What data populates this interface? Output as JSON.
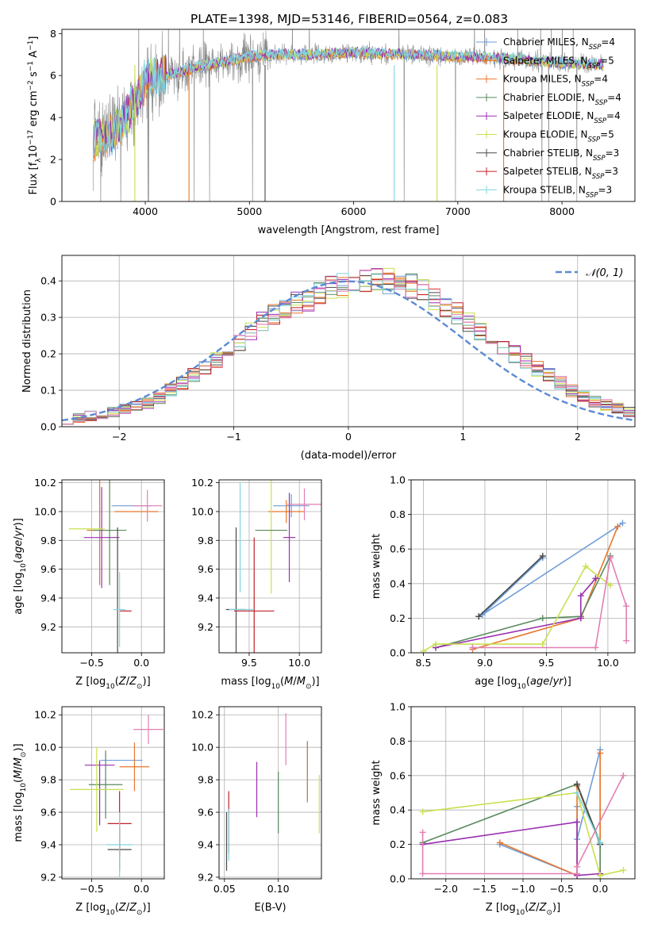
{
  "title": "PLATE=1398, MJD=53146, FIBERID=0564, z=0.083",
  "colors": {
    "chabrier_miles": "#6f9ed8",
    "salpeter_miles": "#e8762d",
    "kroupa_miles": "#e8762d",
    "chabrier_elodie": "#5a8a5e",
    "salpeter_elodie": "#9b2fb1",
    "kroupa_elodie": "#c9e04f",
    "chabrier_stelib": "#4a4a4a",
    "salpeter_stelib": "#c0202a",
    "kroupa_stelib": "#7fd6df",
    "normal": "#5b8ad4",
    "pink": "#e27fb3",
    "spectrum_gray": "#8a8a8a"
  },
  "chart_data": [
    {
      "id": "spectrum",
      "type": "line",
      "xlabel": "wavelength [Angstrom, rest frame]",
      "ylabel_parts": [
        "Flux [f",
        "λ",
        "10",
        "−17",
        " erg cm",
        "−2",
        " s",
        "−1",
        " A",
        "−1",
        "]"
      ],
      "xlim": [
        3200,
        8700
      ],
      "ylim": [
        0,
        8.2
      ],
      "xticks": [
        4000,
        5000,
        6000,
        7000,
        8000
      ],
      "yticks": [
        0,
        2,
        4,
        6,
        8
      ],
      "legend": [
        {
          "name": "Chabrier MILES, N",
          "sub": "SSP",
          "tail": "=4",
          "color": "#6f9ed8"
        },
        {
          "name": "Salpeter MILES, N",
          "sub": "SSP",
          "tail": "=5",
          "color": "#e8762d"
        },
        {
          "name": "Kroupa MILES, N",
          "sub": "SSP",
          "tail": "=4",
          "color": "#e8762d"
        },
        {
          "name": "Chabrier ELODIE, N",
          "sub": "SSP",
          "tail": "=4",
          "color": "#5a8a5e"
        },
        {
          "name": "Salpeter ELODIE, N",
          "sub": "SSP",
          "tail": "=4",
          "color": "#9b2fb1"
        },
        {
          "name": "Kroupa ELODIE, N",
          "sub": "SSP",
          "tail": "=5",
          "color": "#c9e04f"
        },
        {
          "name": "Chabrier STELIB, N",
          "sub": "SSP",
          "tail": "=3",
          "color": "#4a4a4a"
        },
        {
          "name": "Salpeter STELIB, N",
          "sub": "SSP",
          "tail": "=3",
          "color": "#c0202a"
        },
        {
          "name": "Kroupa STELIB, N",
          "sub": "SSP",
          "tail": "=3",
          "color": "#7fd6df"
        }
      ],
      "model_curve": {
        "x": [
          3500,
          3600,
          3700,
          3800,
          3900,
          4000,
          4100,
          4200,
          4300,
          4500,
          4700,
          5000,
          5300,
          5600,
          6000,
          6500,
          7000,
          7500,
          8000,
          8400
        ],
        "y": [
          2.9,
          3.0,
          3.3,
          3.9,
          4.8,
          5.7,
          5.9,
          6.0,
          6.1,
          6.4,
          6.6,
          6.9,
          7.0,
          7.0,
          7.1,
          7.0,
          6.9,
          6.8,
          6.6,
          6.5
        ]
      }
    },
    {
      "id": "residuals",
      "type": "line",
      "xlabel": "(data-model)/error",
      "ylabel": "Normed distribution",
      "xlim": [
        -2.5,
        2.5
      ],
      "ylim": [
        0,
        0.47
      ],
      "xticks": [
        -2,
        -1,
        0,
        1,
        2
      ],
      "xticklabels": [
        "−2",
        "−1",
        "0",
        "1",
        "2"
      ],
      "yticks": [
        0.0,
        0.1,
        0.2,
        0.3,
        0.4
      ],
      "yticklabels": [
        "0.0",
        "0.1",
        "0.2",
        "0.3",
        "0.4"
      ],
      "legend_label": "𝒩(0, 1)",
      "bin_width": 0.1,
      "hist_reference": [
        0.02,
        0.025,
        0.03,
        0.035,
        0.04,
        0.05,
        0.055,
        0.065,
        0.08,
        0.1,
        0.12,
        0.14,
        0.16,
        0.185,
        0.21,
        0.23,
        0.26,
        0.29,
        0.31,
        0.33,
        0.34,
        0.35,
        0.37,
        0.38,
        0.39,
        0.395,
        0.4,
        0.41,
        0.4,
        0.39,
        0.385,
        0.37,
        0.35,
        0.33,
        0.31,
        0.29,
        0.26,
        0.24,
        0.22,
        0.2,
        0.18,
        0.16,
        0.14,
        0.12,
        0.1,
        0.085,
        0.07,
        0.06,
        0.05,
        0.04
      ]
    },
    {
      "id": "age_vs_Z",
      "type": "scatter",
      "xlabel": "Z [log10(Z/Z⊙)]",
      "ylabel": "age  [log10(age/yr)]",
      "xlim": [
        -0.8,
        0.23
      ],
      "ylim": [
        9.02,
        10.22
      ],
      "xticks": [
        -0.5,
        0.0
      ],
      "xticklabels": [
        "−0.5",
        "0.0"
      ],
      "yticks": [
        9.2,
        9.4,
        9.6,
        9.8,
        10.0,
        10.2
      ],
      "errorbars": [
        {
          "x": -0.1,
          "y": 10.04,
          "xerr": 0.2,
          "yerr": 0.0,
          "color": "#6f9ed8"
        },
        {
          "x": -0.05,
          "y": 10.0,
          "xerr": 0.22,
          "yerr": 0.0,
          "color": "#e8762d"
        },
        {
          "x": -0.42,
          "y": 9.87,
          "xerr": 0.13,
          "yerr": 0.38,
          "color": "#e8762d"
        },
        {
          "x": -0.32,
          "y": 9.87,
          "xerr": 0.17,
          "yerr": 0.38,
          "color": "#5a8a5e"
        },
        {
          "x": -0.4,
          "y": 9.82,
          "xerr": 0.18,
          "yerr": 0.35,
          "color": "#9b2fb1"
        },
        {
          "x": -0.55,
          "y": 9.88,
          "xerr": 0.18,
          "yerr": 0.0,
          "color": "#c9e04f"
        },
        {
          "x": -0.24,
          "y": 9.4,
          "xerr": 0.0,
          "yerr": 0.49,
          "color": "#4a4a4a"
        },
        {
          "x": -0.16,
          "y": 9.31,
          "xerr": 0.06,
          "yerr": 0.0,
          "color": "#c0202a"
        },
        {
          "x": -0.22,
          "y": 9.32,
          "xerr": 0.06,
          "yerr": 0.26,
          "color": "#7fd6df"
        },
        {
          "x": 0.06,
          "y": 10.04,
          "xerr": 0.15,
          "yerr": 0.11,
          "color": "#e27fb3"
        }
      ]
    },
    {
      "id": "age_vs_mass",
      "type": "scatter",
      "xlabel": "mass [log10(M/M⊙)]",
      "xlim": [
        9.2,
        10.22
      ],
      "ylim": [
        9.02,
        10.22
      ],
      "xticks": [
        9.5,
        10.0
      ],
      "yticks": [
        9.2,
        9.4,
        9.6,
        9.8,
        10.0,
        10.2
      ],
      "errorbars": [
        {
          "x": 9.92,
          "y": 10.04,
          "xerr": 0.18,
          "yerr": 0.08,
          "color": "#6f9ed8"
        },
        {
          "x": 9.87,
          "y": 10.0,
          "xerr": 0.18,
          "yerr": 0.08,
          "color": "#e8762d"
        },
        {
          "x": 9.41,
          "y": 9.82,
          "xerr": 0.0,
          "yerr": 0.38,
          "color": "#7fd6df"
        },
        {
          "x": 9.72,
          "y": 9.87,
          "xerr": 0.1,
          "yerr": 0.44,
          "color": "#c9e04f"
        },
        {
          "x": 9.72,
          "y": 9.87,
          "xerr": 0.16,
          "yerr": 0.0,
          "color": "#5a8a5e"
        },
        {
          "x": 9.9,
          "y": 9.82,
          "xerr": 0.06,
          "yerr": 0.31,
          "color": "#9b2fb1"
        },
        {
          "x": 9.37,
          "y": 9.32,
          "xerr": 0.1,
          "yerr": 0.57,
          "color": "#4a4a4a"
        },
        {
          "x": 9.55,
          "y": 9.31,
          "xerr": 0.2,
          "yerr": 0.51,
          "color": "#c0202a"
        },
        {
          "x": 9.42,
          "y": 9.32,
          "xerr": 0.12,
          "yerr": 0.0,
          "color": "#7fd6df"
        },
        {
          "x": 10.05,
          "y": 10.05,
          "xerr": 0.17,
          "yerr": 0.11,
          "color": "#e27fb3"
        }
      ]
    },
    {
      "id": "massweight_vs_age",
      "type": "line",
      "xlabel": "age  [log10(age/yr)]",
      "ylabel": "mass weight",
      "xlim": [
        8.4,
        10.22
      ],
      "ylim": [
        0.0,
        1.0
      ],
      "xticks": [
        8.5,
        9.0,
        9.5,
        10.0
      ],
      "yticks": [
        0.0,
        0.2,
        0.4,
        0.6,
        0.8,
        1.0
      ],
      "series": [
        {
          "color": "#6f9ed8",
          "points": [
            [
              8.95,
              0.21
            ],
            [
              9.47,
              0.55
            ],
            [
              8.98,
              0.22
            ],
            [
              10.12,
              0.75
            ]
          ]
        },
        {
          "color": "#4a4a4a",
          "points": [
            [
              8.95,
              0.21
            ],
            [
              9.47,
              0.56
            ]
          ]
        },
        {
          "color": "#e8762d",
          "points": [
            [
              8.9,
              0.02
            ],
            [
              9.78,
              0.2
            ],
            [
              10.08,
              0.73
            ]
          ]
        },
        {
          "color": "#5a8a5e",
          "points": [
            [
              8.6,
              0.03
            ],
            [
              9.47,
              0.2
            ],
            [
              9.78,
              0.21
            ],
            [
              10.02,
              0.56
            ]
          ]
        },
        {
          "color": "#9b2fb1",
          "points": [
            [
              8.6,
              0.03
            ],
            [
              9.78,
              0.2
            ],
            [
              9.78,
              0.33
            ],
            [
              9.9,
              0.43
            ]
          ]
        },
        {
          "color": "#c9e04f",
          "points": [
            [
              8.5,
              0.01
            ],
            [
              8.6,
              0.05
            ],
            [
              9.47,
              0.05
            ],
            [
              9.82,
              0.5
            ],
            [
              10.02,
              0.39
            ]
          ]
        },
        {
          "color": "#e27fb3",
          "points": [
            [
              8.9,
              0.03
            ],
            [
              9.9,
              0.03
            ],
            [
              10.02,
              0.55
            ],
            [
              10.15,
              0.27
            ],
            [
              10.15,
              0.07
            ]
          ]
        }
      ]
    },
    {
      "id": "mass_vs_Z",
      "type": "scatter",
      "xlabel": "Z [log10(Z/Z⊙)]",
      "ylabel": "mass [log10(M/M⊙)]",
      "xlim": [
        -0.8,
        0.23
      ],
      "ylim": [
        9.19,
        10.25
      ],
      "xticks": [
        -0.5,
        0.0
      ],
      "xticklabels": [
        "−0.5",
        "0.0"
      ],
      "yticks": [
        9.2,
        9.4,
        9.6,
        9.8,
        10.0,
        10.2
      ],
      "errorbars": [
        {
          "x": -0.2,
          "y": 9.92,
          "xerr": 0.21,
          "yerr": 0.0,
          "color": "#6f9ed8"
        },
        {
          "x": -0.07,
          "y": 9.88,
          "xerr": 0.15,
          "yerr": 0.15,
          "color": "#e8762d"
        },
        {
          "x": -0.36,
          "y": 9.77,
          "xerr": 0.17,
          "yerr": 0.21,
          "color": "#5a8a5e"
        },
        {
          "x": -0.42,
          "y": 9.89,
          "xerr": 0.15,
          "yerr": 0.0,
          "color": "#9b2fb1"
        },
        {
          "x": -0.42,
          "y": 9.72,
          "xerr": 0.0,
          "yerr": 0.2,
          "color": "#9b2fb1"
        },
        {
          "x": -0.45,
          "y": 9.74,
          "xerr": 0.27,
          "yerr": 0.26,
          "color": "#c9e04f"
        },
        {
          "x": -0.22,
          "y": 9.37,
          "xerr": 0.12,
          "yerr": 0.13,
          "color": "#4a4a4a"
        },
        {
          "x": -0.22,
          "y": 9.53,
          "xerr": 0.12,
          "yerr": 0.2,
          "color": "#c0202a"
        },
        {
          "x": -0.22,
          "y": 9.4,
          "xerr": 0.13,
          "yerr": 0.2,
          "color": "#7fd6df"
        },
        {
          "x": 0.07,
          "y": 10.11,
          "xerr": 0.15,
          "yerr": 0.09,
          "color": "#e27fb3"
        }
      ]
    },
    {
      "id": "mass_vs_ebv",
      "type": "scatter",
      "xlabel": "E(B-V)",
      "xlim": [
        0.045,
        0.14
      ],
      "ylim": [
        9.19,
        10.25
      ],
      "xticks": [
        0.05,
        0.1
      ],
      "xticklabels": [
        "0.05",
        "0.10"
      ],
      "yticks": [
        9.2,
        9.4,
        9.6,
        9.8,
        10.0,
        10.2
      ],
      "errorbars": [
        {
          "x": 0.127,
          "y": 9.85,
          "yerr": 0.19,
          "color": "#6f9ed8"
        },
        {
          "x": 0.127,
          "y": 9.85,
          "yerr": 0.18,
          "color": "#e8762d"
        },
        {
          "x": 0.1,
          "y": 9.66,
          "yerr": 0.19,
          "color": "#5a8a5e"
        },
        {
          "x": 0.08,
          "y": 9.74,
          "yerr": 0.17,
          "color": "#9b2fb1"
        },
        {
          "x": 0.138,
          "y": 9.65,
          "yerr": 0.18,
          "color": "#c9e04f"
        },
        {
          "x": 0.052,
          "y": 9.42,
          "yerr": 0.18,
          "color": "#4a4a4a"
        },
        {
          "x": 0.054,
          "y": 9.54,
          "yerr": 0.19,
          "color": "#c0202a"
        },
        {
          "x": 0.054,
          "y": 9.46,
          "yerr": 0.16,
          "color": "#7fd6df"
        },
        {
          "x": 0.107,
          "y": 10.05,
          "yerr": 0.16,
          "color": "#e27fb3"
        }
      ]
    },
    {
      "id": "massweight_vs_Z",
      "type": "line",
      "xlabel": "Z [log10(Z/Z⊙)]",
      "ylabel": "mass weight",
      "xlim": [
        -2.45,
        0.45
      ],
      "ylim": [
        0.0,
        1.0
      ],
      "xticks": [
        -2.0,
        -1.5,
        -1.0,
        -0.5,
        0.0
      ],
      "xticklabels": [
        "−2.0",
        "−1.5",
        "−1.0",
        "−0.5",
        "0.0"
      ],
      "yticks": [
        0.0,
        0.2,
        0.4,
        0.6,
        0.8,
        1.0
      ],
      "series": [
        {
          "color": "#6f9ed8",
          "points": [
            [
              -1.3,
              0.2
            ],
            [
              -0.3,
              0.02
            ],
            [
              -0.3,
              0.42
            ],
            [
              -0.3,
              0.23
            ],
            [
              0.0,
              0.75
            ],
            [
              0.0,
              0.2
            ]
          ]
        },
        {
          "color": "#e8762d",
          "points": [
            [
              -1.3,
              0.21
            ],
            [
              -0.3,
              0.02
            ],
            [
              -0.3,
              0.54
            ],
            [
              0.0,
              0.2
            ],
            [
              0.0,
              0.73
            ],
            [
              0.0,
              0.02
            ]
          ]
        },
        {
          "color": "#5a8a5e",
          "points": [
            [
              -2.3,
              0.21
            ],
            [
              -0.3,
              0.55
            ],
            [
              0.0,
              0.21
            ],
            [
              0.0,
              0.02
            ]
          ]
        },
        {
          "color": "#9b2fb1",
          "points": [
            [
              -2.3,
              0.2
            ],
            [
              -0.3,
              0.33
            ],
            [
              -0.3,
              0.02
            ],
            [
              0.0,
              0.03
            ]
          ]
        },
        {
          "color": "#c9e04f",
          "points": [
            [
              -2.3,
              0.39
            ],
            [
              -0.3,
              0.5
            ],
            [
              0.0,
              0.02
            ],
            [
              0.3,
              0.05
            ]
          ]
        },
        {
          "color": "#4a4a4a",
          "points": [
            [
              -0.3,
              0.55
            ],
            [
              0.0,
              0.2
            ]
          ]
        },
        {
          "color": "#7fd6df",
          "points": [
            [
              -0.3,
              0.5
            ],
            [
              0.0,
              0.21
            ]
          ]
        },
        {
          "color": "#e27fb3",
          "points": [
            [
              -2.3,
              0.27
            ],
            [
              -2.3,
              0.03
            ],
            [
              -0.3,
              0.03
            ],
            [
              -0.3,
              0.07
            ],
            [
              0.3,
              0.6
            ]
          ]
        }
      ]
    }
  ]
}
